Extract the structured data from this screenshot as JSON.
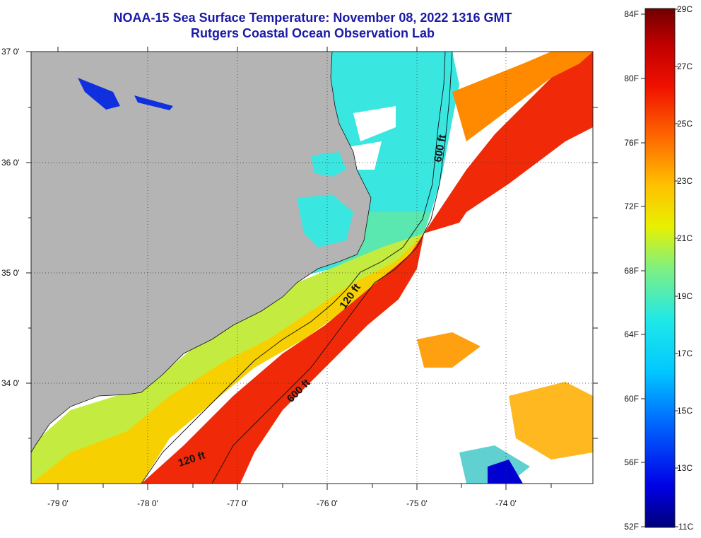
{
  "title": {
    "line1": "NOAA-15 Sea Surface Temperature:  November 08, 2022 1316 GMT",
    "line2": "Rutgers Coastal Ocean Observation Lab"
  },
  "axes": {
    "lat_labels": [
      "37 0'",
      "36 0'",
      "35 0'",
      "34 0'"
    ],
    "lon_labels": [
      "-79 0'",
      "-78 0'",
      "-77 0'",
      "-76 0'",
      "-75 0'",
      "-74 0'"
    ]
  },
  "contours": {
    "shallow": "120 ft",
    "deep": "600 ft"
  },
  "colorbar": {
    "fahrenheit": [
      "84F",
      "80F",
      "76F",
      "72F",
      "68F",
      "64F",
      "60F",
      "56F",
      "52F"
    ],
    "celsius": [
      "29C",
      "27C",
      "25C",
      "23C",
      "21C",
      "19C",
      "17C",
      "15C",
      "13C",
      "11C"
    ]
  },
  "colors": {
    "land": "#b4b4b4",
    "cloud": "#ffffff",
    "title": "#1a1aa6"
  }
}
